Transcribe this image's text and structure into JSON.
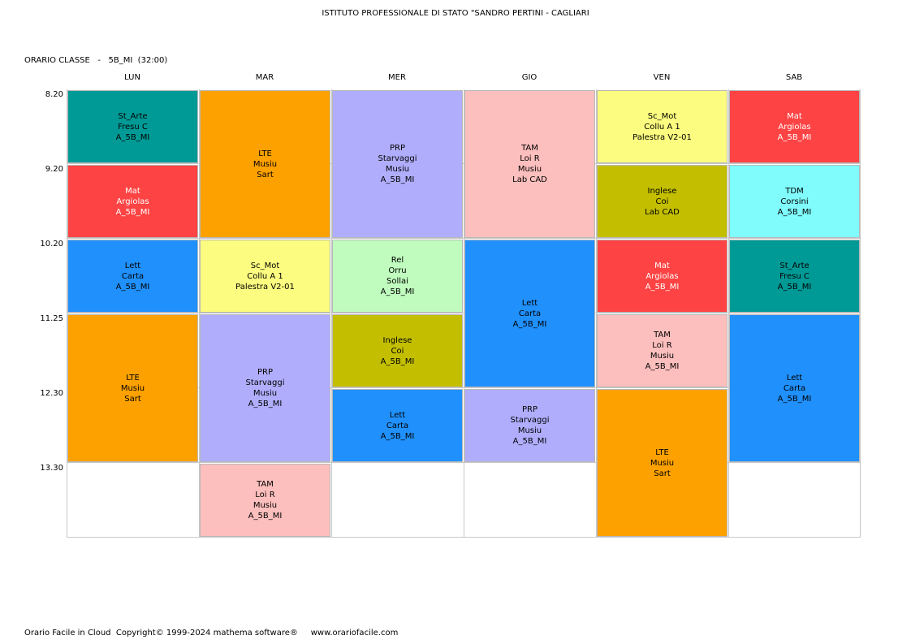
{
  "header": {
    "school": "ISTITUTO PROFESSIONALE DI STATO \"SANDRO PERTINI - CAGLIARI",
    "class_label": "ORARIO CLASSE   -   5B_MI  (32:00)"
  },
  "days": [
    "LUN",
    "MAR",
    "MER",
    "GIO",
    "VEN",
    "SAB"
  ],
  "times": [
    "8.20",
    "9.20",
    "10.20",
    "11.25",
    "12.30",
    "13.30"
  ],
  "colors": {
    "teal": "#009a96",
    "red": "#fd4343",
    "blue": "#2090fc",
    "orange": "#fda100",
    "lavender": "#b0aefc",
    "pink": "#fcbfbd",
    "yellow": "#fcfc80",
    "olive": "#c3bf00",
    "mint": "#bffcbe",
    "cyan": "#80fcfc"
  },
  "lessons": [
    {
      "day": 0,
      "start": 0,
      "span": 1,
      "color": "teal",
      "lines": [
        "St_Arte",
        "Fresu C",
        "A_5B_MI"
      ],
      "light": false
    },
    {
      "day": 0,
      "start": 1,
      "span": 1,
      "color": "red",
      "lines": [
        "Mat",
        "Argiolas",
        "A_5B_MI"
      ],
      "light": true
    },
    {
      "day": 0,
      "start": 2,
      "span": 1,
      "color": "blue",
      "lines": [
        "Lett",
        "Carta",
        "A_5B_MI"
      ],
      "light": false
    },
    {
      "day": 0,
      "start": 3,
      "span": 2,
      "color": "orange",
      "lines": [
        "LTE",
        "Musiu",
        "Sart"
      ],
      "light": false
    },
    {
      "day": 1,
      "start": 0,
      "span": 2,
      "color": "orange",
      "lines": [
        "LTE",
        "Musiu",
        "Sart"
      ],
      "light": false
    },
    {
      "day": 1,
      "start": 2,
      "span": 1,
      "color": "yellow",
      "lines": [
        "Sc_Mot",
        "Collu A 1",
        "Palestra V2-01"
      ],
      "light": false
    },
    {
      "day": 1,
      "start": 3,
      "span": 2,
      "color": "lavender",
      "lines": [
        "PRP",
        "Starvaggi",
        "Musiu",
        "A_5B_MI"
      ],
      "light": false
    },
    {
      "day": 1,
      "start": 5,
      "span": 1,
      "color": "pink",
      "lines": [
        "TAM",
        "Loi R",
        "Musiu",
        "A_5B_MI"
      ],
      "light": false
    },
    {
      "day": 2,
      "start": 0,
      "span": 2,
      "color": "lavender",
      "lines": [
        "PRP",
        "Starvaggi",
        "Musiu",
        "A_5B_MI"
      ],
      "light": false
    },
    {
      "day": 2,
      "start": 2,
      "span": 1,
      "color": "mint",
      "lines": [
        "Rel",
        "Orru",
        "Sollai",
        "A_5B_MI"
      ],
      "light": false
    },
    {
      "day": 2,
      "start": 3,
      "span": 1,
      "color": "olive",
      "lines": [
        "Inglese",
        "Coi",
        "A_5B_MI"
      ],
      "light": false
    },
    {
      "day": 2,
      "start": 4,
      "span": 1,
      "color": "blue",
      "lines": [
        "Lett",
        "Carta",
        "A_5B_MI"
      ],
      "light": false
    },
    {
      "day": 3,
      "start": 0,
      "span": 2,
      "color": "pink",
      "lines": [
        "TAM",
        "Loi R",
        "Musiu",
        "Lab CAD"
      ],
      "light": false
    },
    {
      "day": 3,
      "start": 2,
      "span": 2,
      "color": "blue",
      "lines": [
        "Lett",
        "Carta",
        "A_5B_MI"
      ],
      "light": false
    },
    {
      "day": 3,
      "start": 4,
      "span": 1,
      "color": "lavender",
      "lines": [
        "PRP",
        "Starvaggi",
        "Musiu",
        "A_5B_MI"
      ],
      "light": false
    },
    {
      "day": 4,
      "start": 0,
      "span": 1,
      "color": "yellow",
      "lines": [
        "Sc_Mot",
        "Collu A 1",
        "Palestra V2-01"
      ],
      "light": false
    },
    {
      "day": 4,
      "start": 1,
      "span": 1,
      "color": "olive",
      "lines": [
        "Inglese",
        "Coi",
        "Lab CAD"
      ],
      "light": false
    },
    {
      "day": 4,
      "start": 2,
      "span": 1,
      "color": "red",
      "lines": [
        "Mat",
        "Argiolas",
        "A_5B_MI"
      ],
      "light": true
    },
    {
      "day": 4,
      "start": 3,
      "span": 1,
      "color": "pink",
      "lines": [
        "TAM",
        "Loi R",
        "Musiu",
        "A_5B_MI"
      ],
      "light": false
    },
    {
      "day": 4,
      "start": 4,
      "span": 2,
      "color": "orange",
      "lines": [
        "LTE",
        "Musiu",
        "Sart"
      ],
      "light": false
    },
    {
      "day": 5,
      "start": 0,
      "span": 1,
      "color": "red",
      "lines": [
        "Mat",
        "Argiolas",
        "A_5B_MI"
      ],
      "light": true
    },
    {
      "day": 5,
      "start": 1,
      "span": 1,
      "color": "cyan",
      "lines": [
        "TDM",
        "Corsini",
        "A_5B_MI"
      ],
      "light": false
    },
    {
      "day": 5,
      "start": 2,
      "span": 1,
      "color": "teal",
      "lines": [
        "St_Arte",
        "Fresu C",
        "A_5B_MI"
      ],
      "light": false
    },
    {
      "day": 5,
      "start": 3,
      "span": 2,
      "color": "blue",
      "lines": [
        "Lett",
        "Carta",
        "A_5B_MI"
      ],
      "light": false
    }
  ],
  "footer": "Orario Facile in Cloud  Copyright© 1999-2024 mathema software®     www.orariofacile.com"
}
